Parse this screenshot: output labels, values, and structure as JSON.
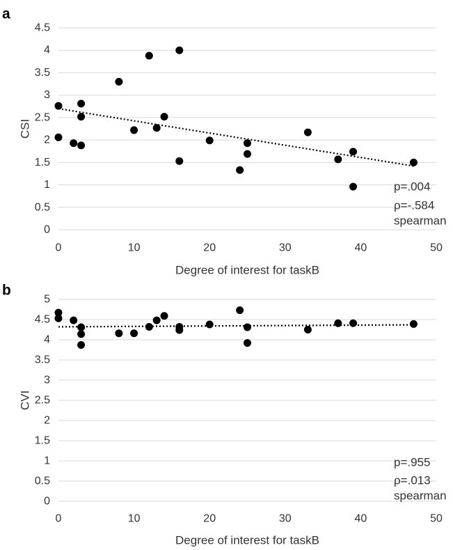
{
  "chart_data": [
    {
      "type": "scatter",
      "panel_label": "a",
      "title": "",
      "xlabel": "Degree of interest for taskB",
      "ylabel": "CSI",
      "xlim": [
        0,
        50
      ],
      "ylim": [
        0,
        4.5
      ],
      "x_ticks": [
        "0",
        "10",
        "20",
        "30",
        "40",
        "50"
      ],
      "y_ticks": [
        "0",
        "0.5",
        "1",
        "1.5",
        "2",
        "2.5",
        "3",
        "3.5",
        "4",
        "4.5"
      ],
      "grid": "horizontal",
      "trendline": {
        "style": "dotted",
        "from": [
          0,
          2.7
        ],
        "to": [
          47,
          1.42
        ]
      },
      "points": [
        [
          0,
          2.76
        ],
        [
          0,
          2.06
        ],
        [
          2,
          1.93
        ],
        [
          3,
          2.81
        ],
        [
          3,
          2.52
        ],
        [
          3,
          1.88
        ],
        [
          8,
          3.3
        ],
        [
          10,
          2.22
        ],
        [
          12,
          3.88
        ],
        [
          13,
          2.27
        ],
        [
          14,
          2.52
        ],
        [
          16,
          4.0
        ],
        [
          16,
          1.53
        ],
        [
          20,
          1.99
        ],
        [
          24,
          1.33
        ],
        [
          25,
          1.93
        ],
        [
          25,
          1.69
        ],
        [
          33,
          2.17
        ],
        [
          37,
          1.57
        ],
        [
          39,
          1.74
        ],
        [
          39,
          0.96
        ],
        [
          47,
          1.5
        ]
      ],
      "annotations": [
        "p=.004",
        "ρ=-.584",
        "spearman"
      ]
    },
    {
      "type": "scatter",
      "panel_label": "b",
      "title": "",
      "xlabel": "Degree of interest for taskB",
      "ylabel": "CVI",
      "xlim": [
        0,
        50
      ],
      "ylim": [
        0,
        5
      ],
      "x_ticks": [
        "0",
        "10",
        "20",
        "30",
        "40",
        "50"
      ],
      "y_ticks": [
        "0",
        "0.5",
        "1",
        "1.5",
        "2",
        "2.5",
        "3",
        "3.5",
        "4",
        "4.5",
        "5"
      ],
      "grid": "horizontal",
      "trendline": {
        "style": "dotted",
        "from": [
          0,
          4.32
        ],
        "to": [
          47,
          4.37
        ]
      },
      "points": [
        [
          0,
          4.67
        ],
        [
          0,
          4.53
        ],
        [
          2,
          4.48
        ],
        [
          3,
          4.31
        ],
        [
          3,
          4.14
        ],
        [
          3,
          3.87
        ],
        [
          8,
          4.16
        ],
        [
          10,
          4.16
        ],
        [
          12,
          4.32
        ],
        [
          13,
          4.48
        ],
        [
          14,
          4.59
        ],
        [
          16,
          4.32
        ],
        [
          16,
          4.24
        ],
        [
          20,
          4.38
        ],
        [
          24,
          4.73
        ],
        [
          25,
          4.31
        ],
        [
          25,
          3.92
        ],
        [
          33,
          4.25
        ],
        [
          37,
          4.41
        ],
        [
          39,
          4.41
        ],
        [
          47,
          4.39
        ]
      ],
      "annotations": [
        "p=.955",
        "ρ=.013",
        "spearman"
      ]
    }
  ]
}
